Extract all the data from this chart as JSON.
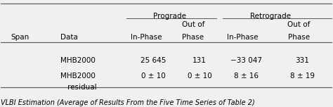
{
  "figsize": [
    4.74,
    1.52
  ],
  "dpi": 100,
  "bg_color": "#f0f0f0",
  "header1": {
    "prograde": "Prograde",
    "retrograde": "Retrograde"
  },
  "header2": {
    "span": "Span",
    "data": "Data",
    "in_phase_p": "In-Phase",
    "out_phase_p": "Out of\nPhase",
    "in_phase_r": "In-Phase",
    "out_phase_r": "Out of\nPhase"
  },
  "row1_data": "MHB2000",
  "row1_vals": [
    "25 645",
    "131",
    "−33 047",
    "331"
  ],
  "row2_data": "MHB2000\nresidual",
  "row2_vals": [
    "0 ± 10",
    "0 ± 10",
    "8 ± 16",
    "8 ± 19"
  ],
  "footnote": "VLBI Estimation (Average of Results From the Five Time Series of Table 2)",
  "col_x": {
    "span": 0.03,
    "data": 0.18,
    "in_phase_p": 0.42,
    "out_phase_p": 0.56,
    "in_phase_r": 0.71,
    "out_phase_r": 0.88
  },
  "line_color": "#555555",
  "font_size": 7.5,
  "footnote_font_size": 7.0
}
